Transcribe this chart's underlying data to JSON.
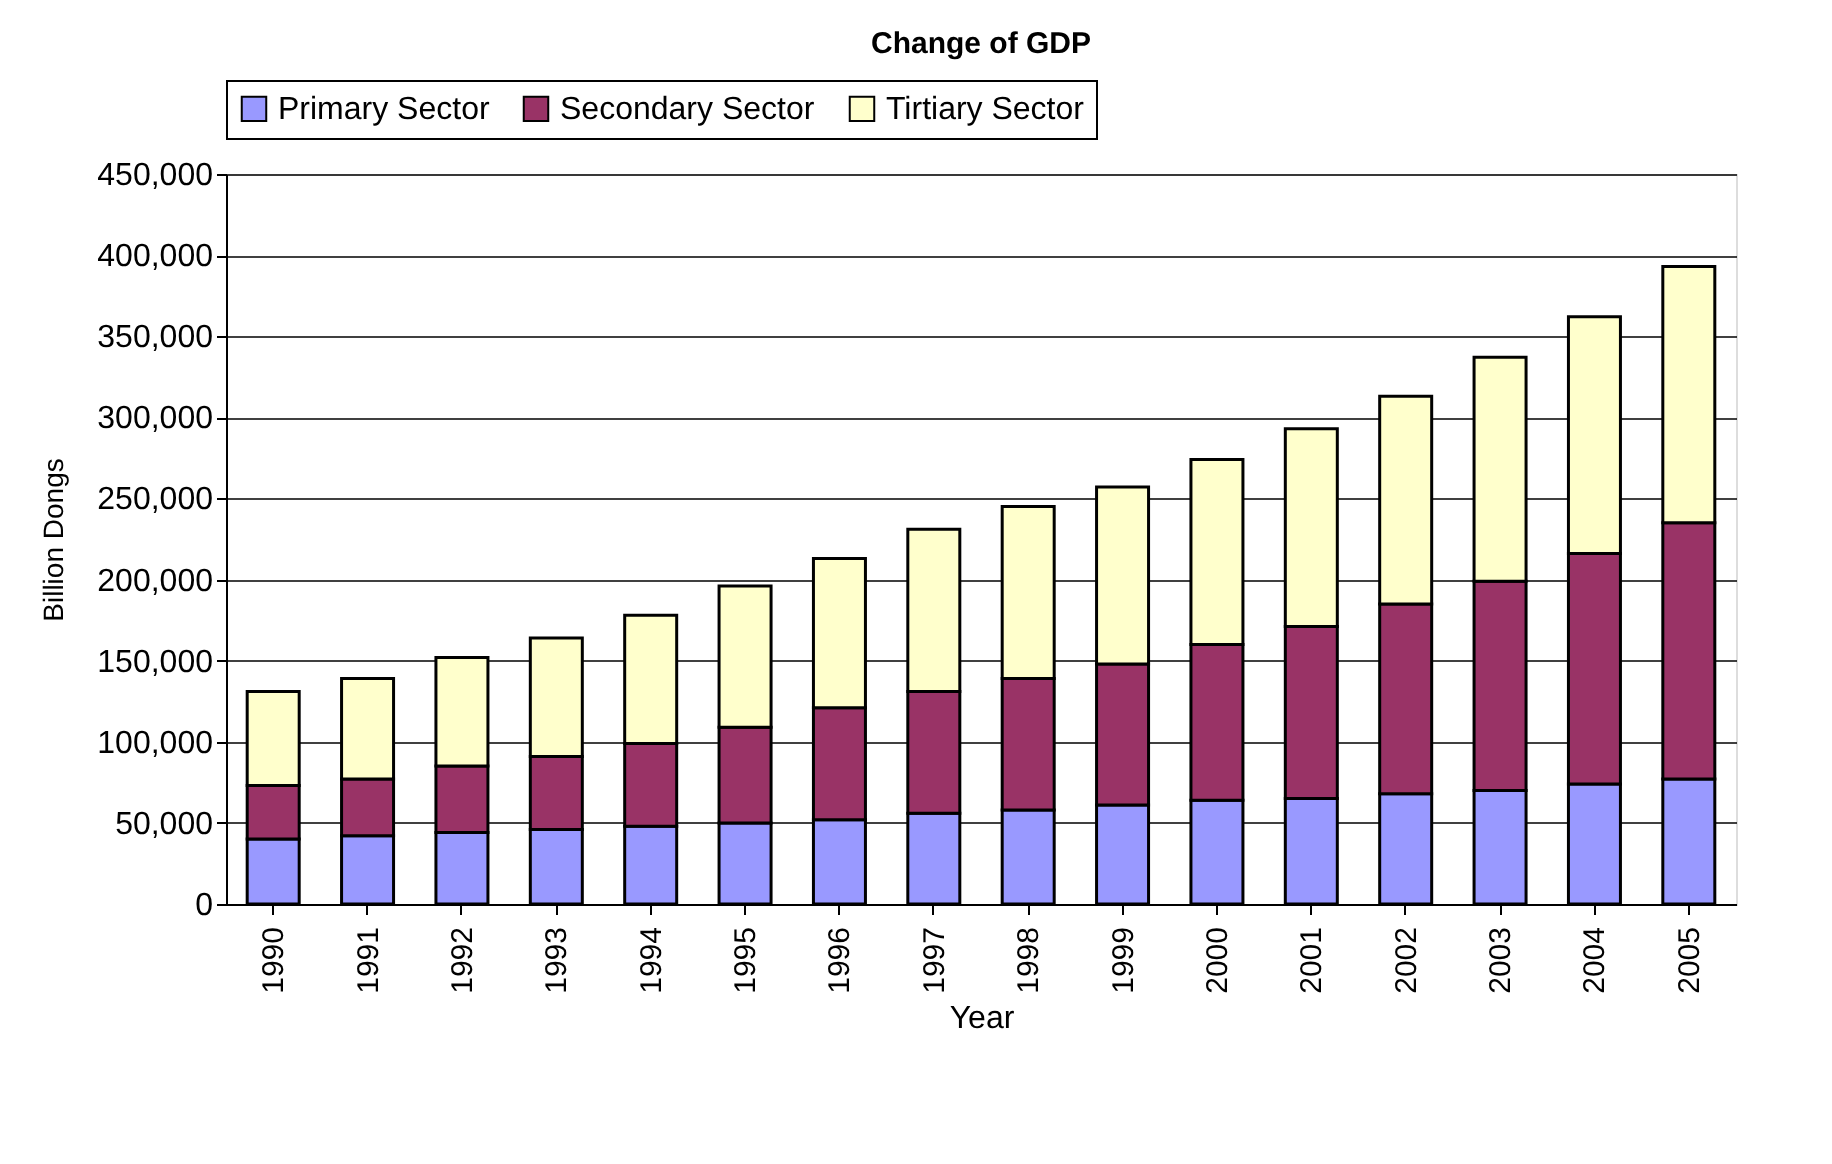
{
  "chart_data": {
    "type": "bar",
    "title": "Change of GDP",
    "xlabel": "Year",
    "ylabel": "Billion Dongs",
    "categories": [
      "1990",
      "1991",
      "1992",
      "1993",
      "1994",
      "1995",
      "1996",
      "1997",
      "1998",
      "1999",
      "2000",
      "2001",
      "2002",
      "2003",
      "2004",
      "2005"
    ],
    "stacked": true,
    "series": [
      {
        "name": "Primary Sector",
        "color": "#9999ff",
        "values": [
          40000,
          42000,
          44000,
          46000,
          48000,
          50000,
          52000,
          56000,
          58000,
          61000,
          64000,
          65000,
          68000,
          70000,
          74000,
          77000
        ]
      },
      {
        "name": "Secondary Sector",
        "color": "#993366",
        "values": [
          33000,
          35000,
          41000,
          45000,
          51000,
          59000,
          69000,
          75000,
          81000,
          87000,
          96000,
          106000,
          117000,
          129000,
          142000,
          158000
        ]
      },
      {
        "name": "Tirtiary Sector",
        "color": "#ffffcc",
        "values": [
          58000,
          62000,
          67000,
          73000,
          79000,
          87000,
          92000,
          100000,
          106000,
          109000,
          114000,
          122000,
          128000,
          138000,
          146000,
          158000
        ]
      }
    ],
    "ylim": [
      0,
      450000
    ],
    "yticks": [
      0,
      {
        "value": 50000,
        "label": "50,000"
      },
      {
        "value": 100000,
        "label": "100,000"
      },
      {
        "value": 150000,
        "label": "150,000"
      },
      {
        "value": 200000,
        "label": "200,000"
      },
      {
        "value": 250000,
        "label": "250,000"
      },
      {
        "value": 300000,
        "label": "300,000"
      },
      {
        "value": 350000,
        "label": "350,000"
      },
      {
        "value": 400000,
        "label": "400,000"
      },
      {
        "value": 450000,
        "label": "450,000"
      }
    ],
    "grid": "y",
    "legend": "top"
  }
}
